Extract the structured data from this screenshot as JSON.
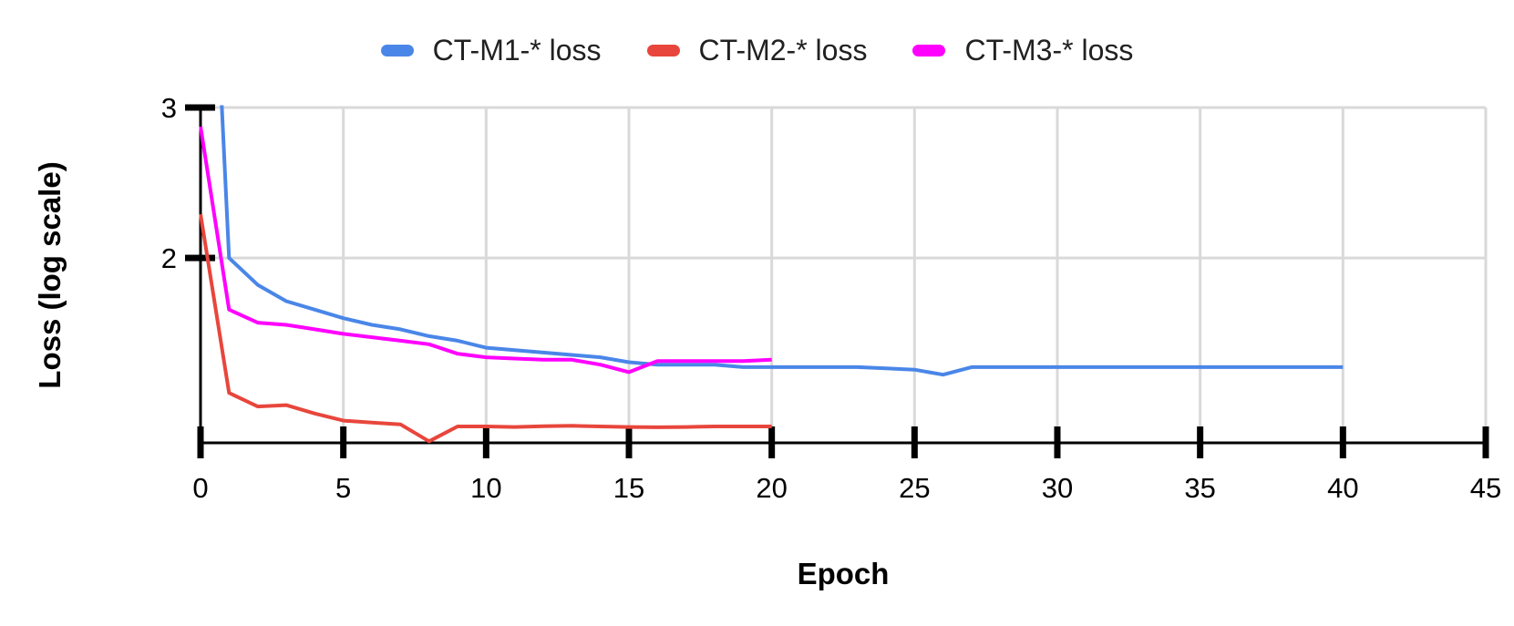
{
  "chart_data": {
    "type": "line",
    "title": "",
    "xlabel": "Epoch",
    "ylabel": "Loss (log scale)",
    "grid": true,
    "legend_position": "top",
    "x_axis": {
      "min": 0,
      "max": 45,
      "ticks": [
        0,
        5,
        10,
        15,
        20,
        25,
        30,
        35,
        40,
        45
      ]
    },
    "y_axis": {
      "scale": "log",
      "min": 1.215,
      "max": 3,
      "ticks": [
        3,
        2
      ]
    },
    "colors": {
      "grid": "#d9d9d9",
      "axis": "#000000",
      "tick_label": "#000000",
      "legend_text": "#212121",
      "background": "#ffffff"
    },
    "series": [
      {
        "name": "CT-M1-* loss",
        "color": "#4a86e8",
        "note": "epoch-0 value exceeds axis max and is clipped at top of plot",
        "x": [
          0,
          1,
          2,
          3,
          4,
          5,
          6,
          7,
          8,
          9,
          10,
          11,
          12,
          13,
          14,
          15,
          16,
          17,
          18,
          19,
          20,
          21,
          22,
          23,
          24,
          25,
          26,
          27,
          28,
          29,
          30,
          31,
          32,
          33,
          34,
          35,
          36,
          37,
          38,
          39,
          40
        ],
        "values": [
          10.0,
          2.0,
          1.86,
          1.78,
          1.74,
          1.7,
          1.67,
          1.65,
          1.62,
          1.6,
          1.57,
          1.56,
          1.55,
          1.54,
          1.53,
          1.51,
          1.5,
          1.5,
          1.5,
          1.49,
          1.49,
          1.49,
          1.49,
          1.49,
          1.485,
          1.48,
          1.46,
          1.49,
          1.49,
          1.49,
          1.49,
          1.49,
          1.49,
          1.49,
          1.49,
          1.49,
          1.49,
          1.49,
          1.49,
          1.49,
          1.49
        ]
      },
      {
        "name": "CT-M2-* loss",
        "color": "#e8463c",
        "x": [
          0,
          1,
          2,
          3,
          4,
          5,
          6,
          7,
          8,
          9,
          10,
          11,
          12,
          13,
          14,
          15,
          16,
          17,
          18,
          19,
          20
        ],
        "values": [
          2.25,
          1.39,
          1.34,
          1.345,
          1.315,
          1.29,
          1.283,
          1.277,
          1.22,
          1.27,
          1.27,
          1.268,
          1.271,
          1.272,
          1.27,
          1.268,
          1.267,
          1.268,
          1.27,
          1.27,
          1.27
        ]
      },
      {
        "name": "CT-M3-* loss",
        "color": "#ff00ff",
        "x": [
          0,
          1,
          2,
          3,
          4,
          5,
          6,
          7,
          8,
          9,
          10,
          11,
          12,
          13,
          14,
          15,
          16,
          17,
          18,
          19,
          20
        ],
        "values": [
          2.85,
          1.74,
          1.68,
          1.67,
          1.65,
          1.63,
          1.615,
          1.6,
          1.585,
          1.545,
          1.53,
          1.525,
          1.52,
          1.52,
          1.5,
          1.47,
          1.515,
          1.515,
          1.515,
          1.515,
          1.52
        ]
      }
    ]
  }
}
